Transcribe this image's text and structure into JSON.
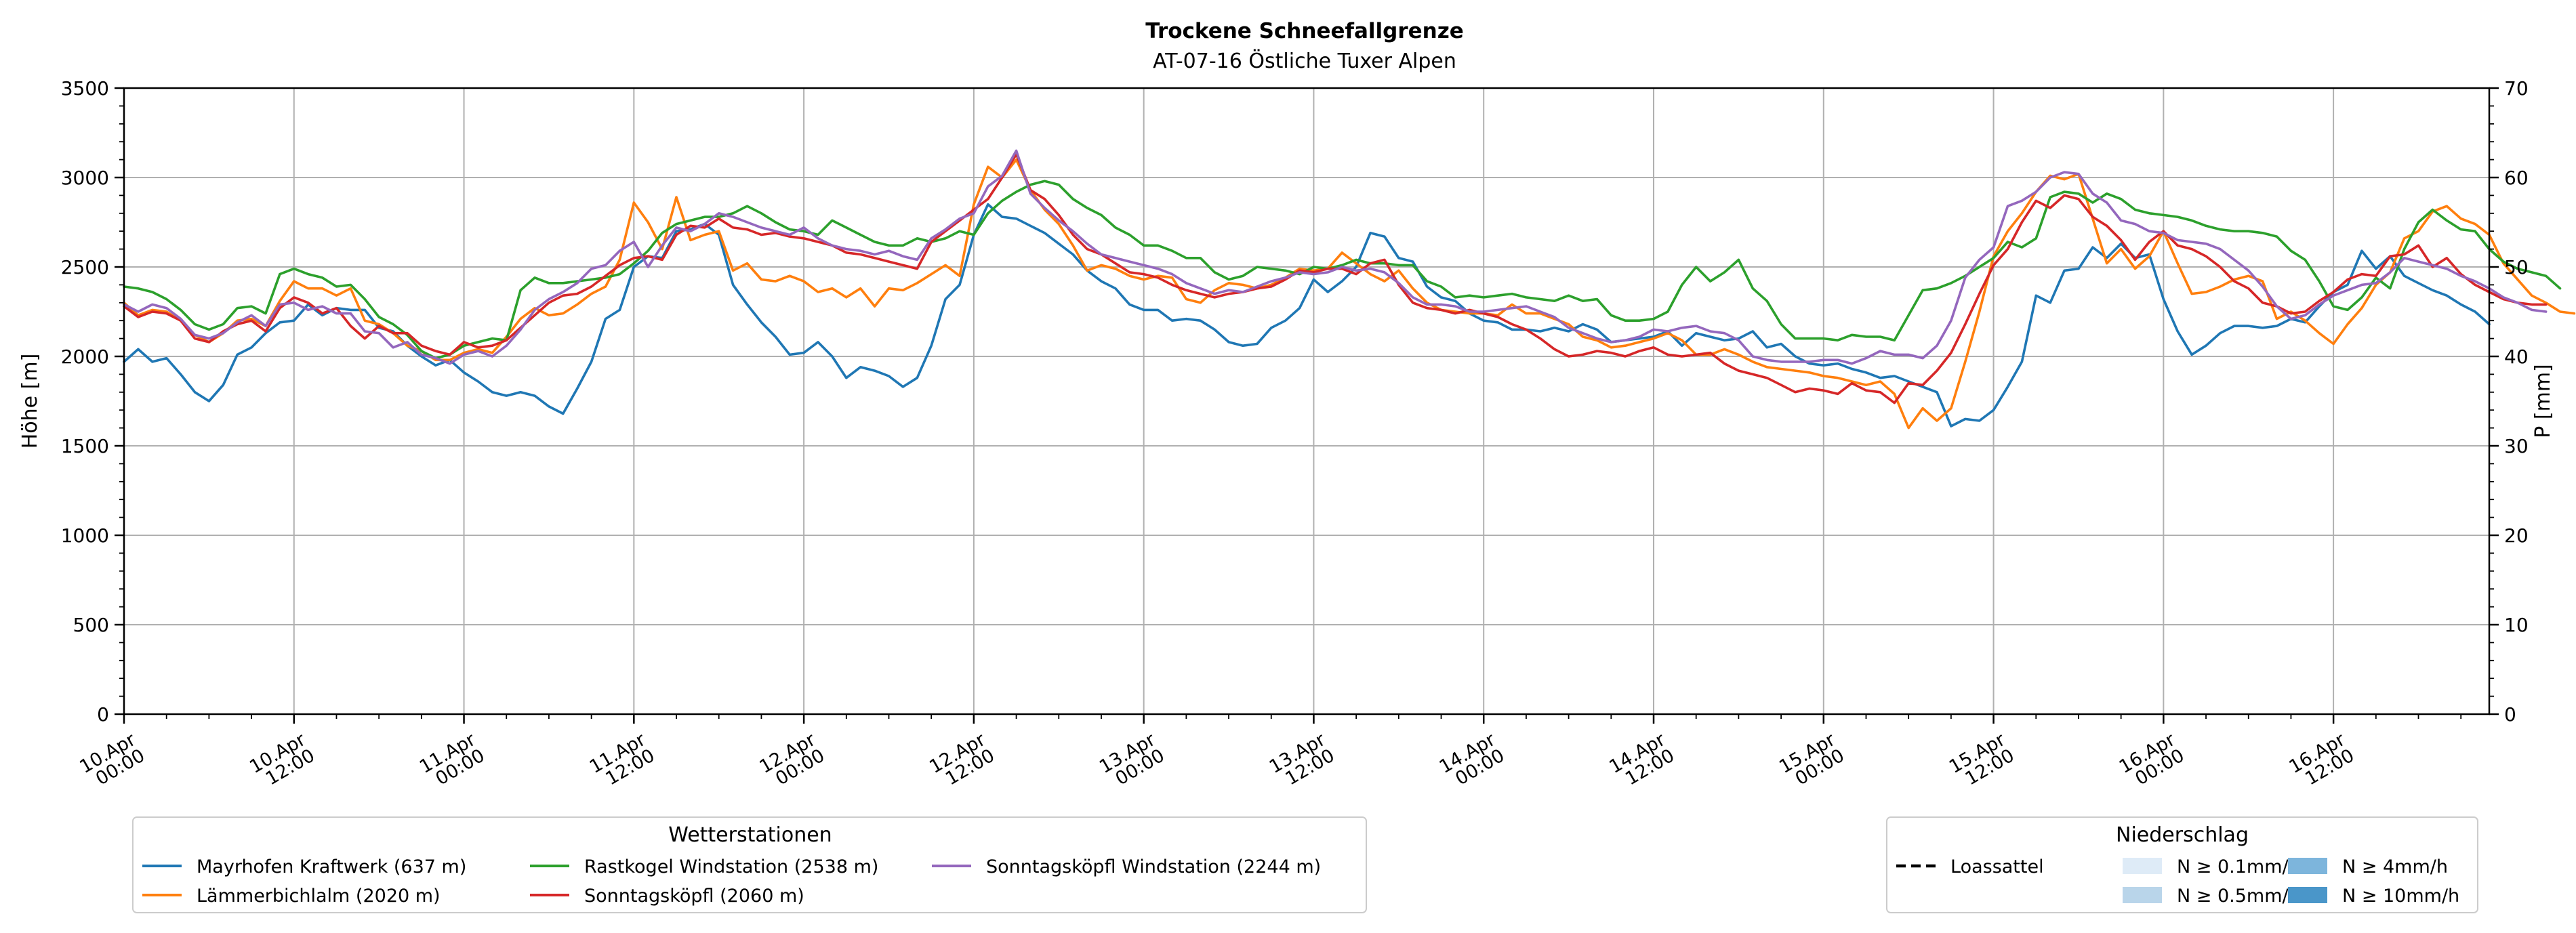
{
  "chart_data": {
    "type": "line",
    "title": "Trockene Schneefallgrenze",
    "subtitle": "AT-07-16 Östliche Tuxer Alpen",
    "ylabel": "Höhe [m]",
    "y2label": "P [mm]",
    "ylim": [
      0,
      3500
    ],
    "y2lim": [
      0,
      70
    ],
    "yticks": [
      0,
      500,
      1000,
      1500,
      2000,
      2500,
      3000,
      3500
    ],
    "y2ticks": [
      0,
      10,
      20,
      30,
      40,
      50,
      60,
      70
    ],
    "xlim_hours": [
      0,
      167
    ],
    "x_hour_step": 1,
    "xticks": [
      {
        "hour": 0,
        "line1": "10.Apr",
        "line2": "00:00"
      },
      {
        "hour": 12,
        "line1": "10.Apr",
        "line2": "12:00"
      },
      {
        "hour": 24,
        "line1": "11.Apr",
        "line2": "00:00"
      },
      {
        "hour": 36,
        "line1": "11.Apr",
        "line2": "12:00"
      },
      {
        "hour": 48,
        "line1": "12.Apr",
        "line2": "00:00"
      },
      {
        "hour": 60,
        "line1": "12.Apr",
        "line2": "12:00"
      },
      {
        "hour": 72,
        "line1": "13.Apr",
        "line2": "00:00"
      },
      {
        "hour": 84,
        "line1": "13.Apr",
        "line2": "12:00"
      },
      {
        "hour": 96,
        "line1": "14.Apr",
        "line2": "00:00"
      },
      {
        "hour": 108,
        "line1": "14.Apr",
        "line2": "12:00"
      },
      {
        "hour": 120,
        "line1": "15.Apr",
        "line2": "00:00"
      },
      {
        "hour": 132,
        "line1": "15.Apr",
        "line2": "12:00"
      },
      {
        "hour": 144,
        "line1": "16.Apr",
        "line2": "00:00"
      },
      {
        "hour": 156,
        "line1": "16.Apr",
        "line2": "12:00"
      }
    ],
    "grid": true,
    "legend_stations_title": "Wetterstationen",
    "legend_stations_placement": "bottom-left",
    "legend_precip_title": "Niederschlag",
    "legend_precip_placement": "bottom-right",
    "precip_legend": [
      {
        "label": "Loassattel",
        "kind": "dashed-line",
        "color": "#000000"
      },
      {
        "label": "N ≥ 0.1mm/h",
        "kind": "patch",
        "color": "#deebf7"
      },
      {
        "label": "N ≥ 0.5mm/h",
        "kind": "patch",
        "color": "#b9d5ea"
      },
      {
        "label": "N ≥ 4mm/h",
        "kind": "patch",
        "color": "#7db5dc"
      },
      {
        "label": "N ≥ 10mm/h",
        "kind": "patch",
        "color": "#4a96c9"
      }
    ],
    "series": [
      {
        "name": "Mayrhofen Kraftwerk (637 m)",
        "color": "#1f77b4",
        "values": [
          1970,
          2040,
          1970,
          1990,
          1900,
          1800,
          1750,
          1840,
          2010,
          2050,
          2130,
          2190,
          2200,
          2290,
          2230,
          2270,
          2260,
          2260,
          2160,
          2140,
          2060,
          2000,
          1950,
          1980,
          1910,
          1860,
          1800,
          1780,
          1800,
          1780,
          1720,
          1680,
          1820,
          1970,
          2210,
          2260,
          2500,
          2560,
          2550,
          2700,
          2710,
          2740,
          2680,
          2400,
          2290,
          2190,
          2110,
          2010,
          2020,
          2080,
          2000,
          1880,
          1940,
          1920,
          1890,
          1830,
          1880,
          2060,
          2320,
          2400,
          2680,
          2850,
          2780,
          2770,
          2730,
          2690,
          2630,
          2570,
          2480,
          2420,
          2380,
          2290,
          2260,
          2260,
          2200,
          2210,
          2200,
          2150,
          2080,
          2060,
          2070,
          2160,
          2200,
          2270,
          2430,
          2360,
          2420,
          2500,
          2690,
          2670,
          2550,
          2530,
          2390,
          2330,
          2310,
          2240,
          2200,
          2190,
          2150,
          2150,
          2140,
          2160,
          2140,
          2180,
          2150,
          2080,
          2090,
          2100,
          2110,
          2140,
          2060,
          2130,
          2110,
          2090,
          2100,
          2140,
          2050,
          2070,
          2000,
          1960,
          1950,
          1960,
          1930,
          1910,
          1880,
          1890,
          1860,
          1830,
          1800,
          1610,
          1650,
          1640,
          1700,
          1830,
          1970,
          2340,
          2300,
          2480,
          2490,
          2610,
          2550,
          2630,
          2550,
          2570,
          2320,
          2140,
          2010,
          2060,
          2130,
          2170,
          2170,
          2160,
          2170,
          2210,
          2190,
          2280,
          2360,
          2400,
          2590,
          2490,
          2560,
          2450,
          2410,
          2370,
          2340,
          2290,
          2250,
          2180
        ]
      },
      {
        "name": "Lämmerbichlalm (2020 m)",
        "color": "#ff7f0e",
        "values": [
          2300,
          2230,
          2260,
          2250,
          2200,
          2120,
          2080,
          2130,
          2200,
          2210,
          2170,
          2310,
          2420,
          2380,
          2380,
          2340,
          2380,
          2200,
          2180,
          2130,
          2060,
          2030,
          1980,
          1980,
          2020,
          2040,
          2020,
          2110,
          2210,
          2270,
          2230,
          2240,
          2290,
          2350,
          2390,
          2540,
          2860,
          2750,
          2600,
          2890,
          2650,
          2680,
          2700,
          2480,
          2520,
          2430,
          2420,
          2450,
          2420,
          2360,
          2380,
          2330,
          2380,
          2280,
          2380,
          2370,
          2410,
          2460,
          2510,
          2450,
          2850,
          3060,
          3000,
          3100,
          2930,
          2820,
          2740,
          2620,
          2480,
          2510,
          2490,
          2450,
          2430,
          2450,
          2440,
          2320,
          2300,
          2370,
          2410,
          2400,
          2380,
          2400,
          2440,
          2490,
          2480,
          2490,
          2580,
          2520,
          2460,
          2420,
          2480,
          2380,
          2300,
          2260,
          2250,
          2240,
          2240,
          2230,
          2290,
          2240,
          2240,
          2210,
          2180,
          2110,
          2090,
          2050,
          2060,
          2080,
          2100,
          2130,
          2090,
          2010,
          2010,
          2040,
          2010,
          1970,
          1940,
          1930,
          1920,
          1910,
          1890,
          1880,
          1860,
          1840,
          1860,
          1790,
          1600,
          1710,
          1640,
          1710,
          1970,
          2250,
          2560,
          2700,
          2800,
          2920,
          3010,
          2990,
          3020,
          2770,
          2520,
          2600,
          2490,
          2560,
          2700,
          2520,
          2350,
          2360,
          2390,
          2430,
          2450,
          2420,
          2210,
          2250,
          2200,
          2130,
          2070,
          2180,
          2270,
          2400,
          2470,
          2660,
          2700,
          2810,
          2840,
          2770,
          2740,
          2680,
          2520,
          2430,
          2340,
          2300,
          2250,
          2240
        ]
      },
      {
        "name": "Rastkogel Windstation (2538 m)",
        "color": "#2ca02c",
        "values": [
          2390,
          2380,
          2360,
          2320,
          2260,
          2180,
          2150,
          2180,
          2270,
          2280,
          2240,
          2460,
          2490,
          2460,
          2440,
          2390,
          2400,
          2320,
          2220,
          2180,
          2120,
          2030,
          1990,
          2010,
          2060,
          2080,
          2100,
          2090,
          2370,
          2440,
          2410,
          2410,
          2420,
          2430,
          2440,
          2460,
          2520,
          2590,
          2690,
          2740,
          2760,
          2780,
          2780,
          2800,
          2840,
          2800,
          2750,
          2710,
          2700,
          2680,
          2760,
          2720,
          2680,
          2640,
          2620,
          2620,
          2660,
          2640,
          2660,
          2700,
          2680,
          2800,
          2870,
          2920,
          2960,
          2980,
          2960,
          2880,
          2830,
          2790,
          2720,
          2680,
          2620,
          2620,
          2590,
          2550,
          2550,
          2470,
          2430,
          2450,
          2500,
          2490,
          2480,
          2460,
          2500,
          2490,
          2510,
          2540,
          2520,
          2520,
          2510,
          2510,
          2420,
          2390,
          2330,
          2340,
          2330,
          2340,
          2350,
          2330,
          2320,
          2310,
          2340,
          2310,
          2320,
          2230,
          2200,
          2200,
          2210,
          2250,
          2400,
          2500,
          2420,
          2470,
          2540,
          2380,
          2310,
          2180,
          2100,
          2100,
          2100,
          2090,
          2120,
          2110,
          2110,
          2090,
          2230,
          2370,
          2380,
          2410,
          2450,
          2500,
          2550,
          2640,
          2610,
          2660,
          2890,
          2920,
          2910,
          2860,
          2910,
          2880,
          2820,
          2800,
          2790,
          2780,
          2760,
          2730,
          2710,
          2700,
          2700,
          2690,
          2670,
          2590,
          2540,
          2420,
          2280,
          2260,
          2330,
          2440,
          2380,
          2600,
          2750,
          2820,
          2760,
          2710,
          2700,
          2600,
          2530,
          2490,
          2470,
          2450,
          2380
        ]
      },
      {
        "name": "Sonntagsköpfl (2060 m)",
        "color": "#d62728",
        "values": [
          2280,
          2220,
          2250,
          2240,
          2200,
          2100,
          2080,
          2140,
          2180,
          2200,
          2140,
          2270,
          2330,
          2300,
          2240,
          2270,
          2170,
          2100,
          2170,
          2130,
          2130,
          2060,
          2030,
          2010,
          2080,
          2050,
          2060,
          2090,
          2160,
          2230,
          2300,
          2340,
          2350,
          2390,
          2450,
          2510,
          2550,
          2560,
          2540,
          2680,
          2730,
          2720,
          2770,
          2720,
          2710,
          2680,
          2690,
          2670,
          2660,
          2640,
          2620,
          2580,
          2570,
          2550,
          2530,
          2510,
          2490,
          2640,
          2700,
          2760,
          2820,
          2880,
          3000,
          3130,
          2930,
          2880,
          2790,
          2680,
          2600,
          2570,
          2520,
          2470,
          2460,
          2440,
          2400,
          2370,
          2350,
          2330,
          2350,
          2360,
          2380,
          2390,
          2430,
          2480,
          2470,
          2490,
          2490,
          2460,
          2520,
          2540,
          2400,
          2300,
          2270,
          2260,
          2240,
          2260,
          2240,
          2220,
          2180,
          2150,
          2100,
          2040,
          2000,
          2010,
          2030,
          2020,
          2000,
          2030,
          2050,
          2010,
          2000,
          2010,
          2020,
          1960,
          1920,
          1900,
          1880,
          1840,
          1800,
          1820,
          1810,
          1790,
          1850,
          1810,
          1800,
          1740,
          1850,
          1840,
          1920,
          2020,
          2180,
          2350,
          2510,
          2600,
          2750,
          2870,
          2830,
          2900,
          2880,
          2780,
          2730,
          2650,
          2540,
          2640,
          2700,
          2620,
          2600,
          2560,
          2500,
          2420,
          2380,
          2300,
          2280,
          2240,
          2250,
          2310,
          2360,
          2430,
          2460,
          2450,
          2560,
          2570,
          2620,
          2500,
          2550,
          2460,
          2400,
          2360,
          2320,
          2300,
          2290,
          2290
        ]
      },
      {
        "name": "Sonntagsköpfl Windstation (2244 m)",
        "color": "#9467bd",
        "values": [
          2290,
          2250,
          2290,
          2270,
          2210,
          2120,
          2100,
          2130,
          2190,
          2230,
          2170,
          2290,
          2300,
          2260,
          2280,
          2240,
          2240,
          2140,
          2130,
          2050,
          2080,
          2010,
          1990,
          1960,
          2010,
          2030,
          2000,
          2060,
          2150,
          2260,
          2320,
          2360,
          2410,
          2490,
          2510,
          2590,
          2640,
          2500,
          2620,
          2720,
          2700,
          2740,
          2800,
          2780,
          2750,
          2720,
          2700,
          2680,
          2720,
          2660,
          2620,
          2600,
          2590,
          2570,
          2590,
          2560,
          2540,
          2660,
          2710,
          2770,
          2800,
          2950,
          3010,
          3150,
          2910,
          2830,
          2760,
          2700,
          2630,
          2570,
          2550,
          2530,
          2510,
          2490,
          2460,
          2410,
          2380,
          2350,
          2370,
          2360,
          2390,
          2420,
          2440,
          2470,
          2460,
          2470,
          2500,
          2480,
          2490,
          2470,
          2410,
          2330,
          2290,
          2290,
          2280,
          2250,
          2250,
          2260,
          2270,
          2280,
          2250,
          2220,
          2160,
          2130,
          2100,
          2080,
          2090,
          2110,
          2150,
          2140,
          2160,
          2170,
          2140,
          2130,
          2090,
          2000,
          1980,
          1970,
          1970,
          1970,
          1980,
          1980,
          1960,
          1990,
          2030,
          2010,
          2010,
          1990,
          2060,
          2200,
          2440,
          2540,
          2610,
          2840,
          2870,
          2920,
          3000,
          3030,
          3020,
          2910,
          2860,
          2760,
          2740,
          2700,
          2690,
          2650,
          2640,
          2630,
          2600,
          2540,
          2480,
          2390,
          2280,
          2210,
          2230,
          2290,
          2340,
          2370,
          2400,
          2410,
          2470,
          2550,
          2530,
          2510,
          2490,
          2450,
          2420,
          2380,
          2330,
          2300,
          2260,
          2250
        ]
      }
    ]
  }
}
